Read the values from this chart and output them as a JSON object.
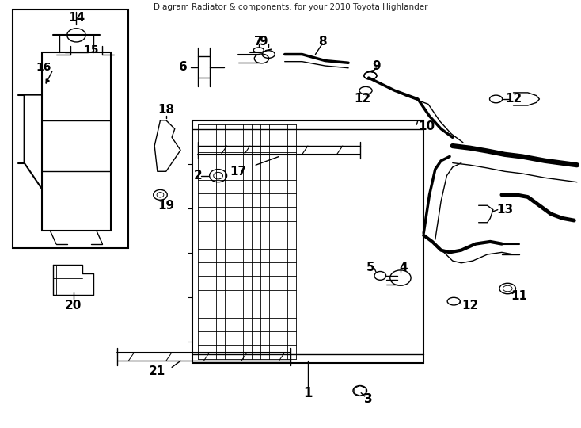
{
  "title": "Diagram Radiator & components. for your 2010 Toyota Highlander",
  "bg_color": "#ffffff",
  "line_color": "#000000",
  "label_color": "#000000",
  "figsize": [
    7.34,
    5.4
  ],
  "dpi": 100
}
